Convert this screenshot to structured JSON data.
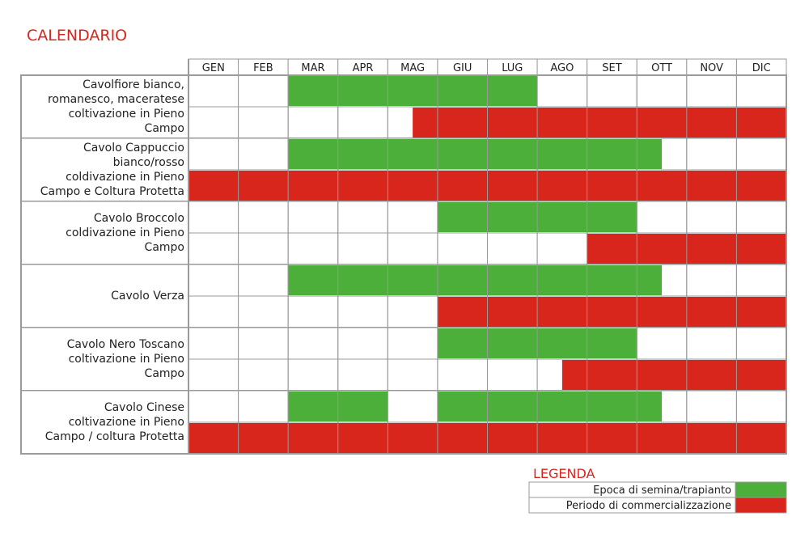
{
  "title": "CALENDARIO",
  "months": [
    "GEN",
    "FEB",
    "MAR",
    "APR",
    "MAG",
    "GIU",
    "LUG",
    "AGO",
    "SET",
    "OTT",
    "NOV",
    "DIC"
  ],
  "colors": {
    "semina": "#4caf3a",
    "commercializzazione": "#d9261c",
    "grid": "#9a9a9a",
    "text": "#222222"
  },
  "legend": {
    "title": "LEGENDA",
    "items": [
      {
        "label": "Epoca di semina/trapianto",
        "key": "semina"
      },
      {
        "label": "Periodo di commercializzazione",
        "key": "commercializzazione"
      }
    ]
  },
  "chart_data": {
    "type": "table",
    "title": "CALENDARIO",
    "x_unit": "month (1 = GEN ... 12 = DIC)",
    "series": [
      {
        "name": "Epoca di semina/trapianto",
        "color": "#4caf3a"
      },
      {
        "name": "Periodo di commercializzazione",
        "color": "#d9261c"
      }
    ],
    "crops": [
      {
        "label_lines": [
          "Cavolfiore bianco,",
          "romanesco, maceratese",
          "coltivazione in Pieno",
          "Campo"
        ],
        "semina": [
          [
            3,
            7
          ]
        ],
        "commercializzazione": [
          [
            5.5,
            12
          ]
        ]
      },
      {
        "label_lines": [
          "Cavolo Cappuccio",
          "bianco/rosso",
          "coldivazione in Pieno",
          "Campo e Coltura Protetta"
        ],
        "semina": [
          [
            3,
            9.5
          ]
        ],
        "commercializzazione": [
          [
            1,
            12
          ]
        ]
      },
      {
        "label_lines": [
          "Cavolo Broccolo",
          "coldivazione in Pieno",
          "Campo"
        ],
        "semina": [
          [
            6,
            9
          ]
        ],
        "commercializzazione": [
          [
            9,
            12
          ]
        ]
      },
      {
        "label_lines": [
          "Cavolo Verza"
        ],
        "semina": [
          [
            3,
            9.5
          ]
        ],
        "commercializzazione": [
          [
            6,
            12
          ]
        ]
      },
      {
        "label_lines": [
          "Cavolo Nero Toscano",
          "coltivazione in Pieno",
          "Campo"
        ],
        "semina": [
          [
            6,
            9
          ]
        ],
        "commercializzazione": [
          [
            8.5,
            12
          ]
        ]
      },
      {
        "label_lines": [
          "Cavolo Cinese",
          "coltivazione in Pieno",
          "Campo / coltura Protetta"
        ],
        "semina": [
          [
            3,
            4
          ],
          [
            6,
            9.5
          ]
        ],
        "commercializzazione": [
          [
            1,
            12
          ]
        ]
      }
    ]
  }
}
